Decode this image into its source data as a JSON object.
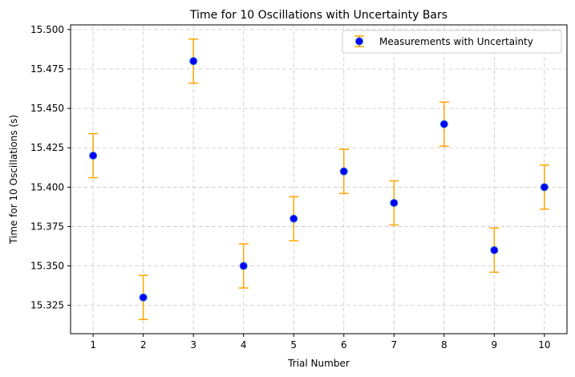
{
  "chart_data": {
    "type": "scatter",
    "title": "Time for 10 Oscillations with Uncertainty Bars",
    "xlabel": "Trial Number",
    "ylabel": "Time for 10 Oscillations (s)",
    "x": [
      1,
      2,
      3,
      4,
      5,
      6,
      7,
      8,
      9,
      10
    ],
    "x_tick_labels": [
      "1",
      "2",
      "3",
      "4",
      "5",
      "6",
      "7",
      "8",
      "9",
      "10"
    ],
    "series": [
      {
        "name": "Measurements with Uncertainty",
        "values": [
          15.42,
          15.33,
          15.48,
          15.35,
          15.38,
          15.41,
          15.39,
          15.44,
          15.36,
          15.4
        ],
        "uncertainty": 0.014,
        "marker_color": "#0000ff",
        "marker_edge_color": "#2b6cc4",
        "error_color": "#ffa500"
      }
    ],
    "y_ticks": [
      15.325,
      15.35,
      15.375,
      15.4,
      15.425,
      15.45,
      15.475,
      15.5
    ],
    "y_tick_labels": [
      "15.325",
      "15.350",
      "15.375",
      "15.400",
      "15.425",
      "15.450",
      "15.475",
      "15.500"
    ],
    "xlim": [
      0.55,
      10.45
    ],
    "ylim": [
      15.307,
      15.503
    ],
    "grid": true,
    "legend_position": "top-right"
  }
}
